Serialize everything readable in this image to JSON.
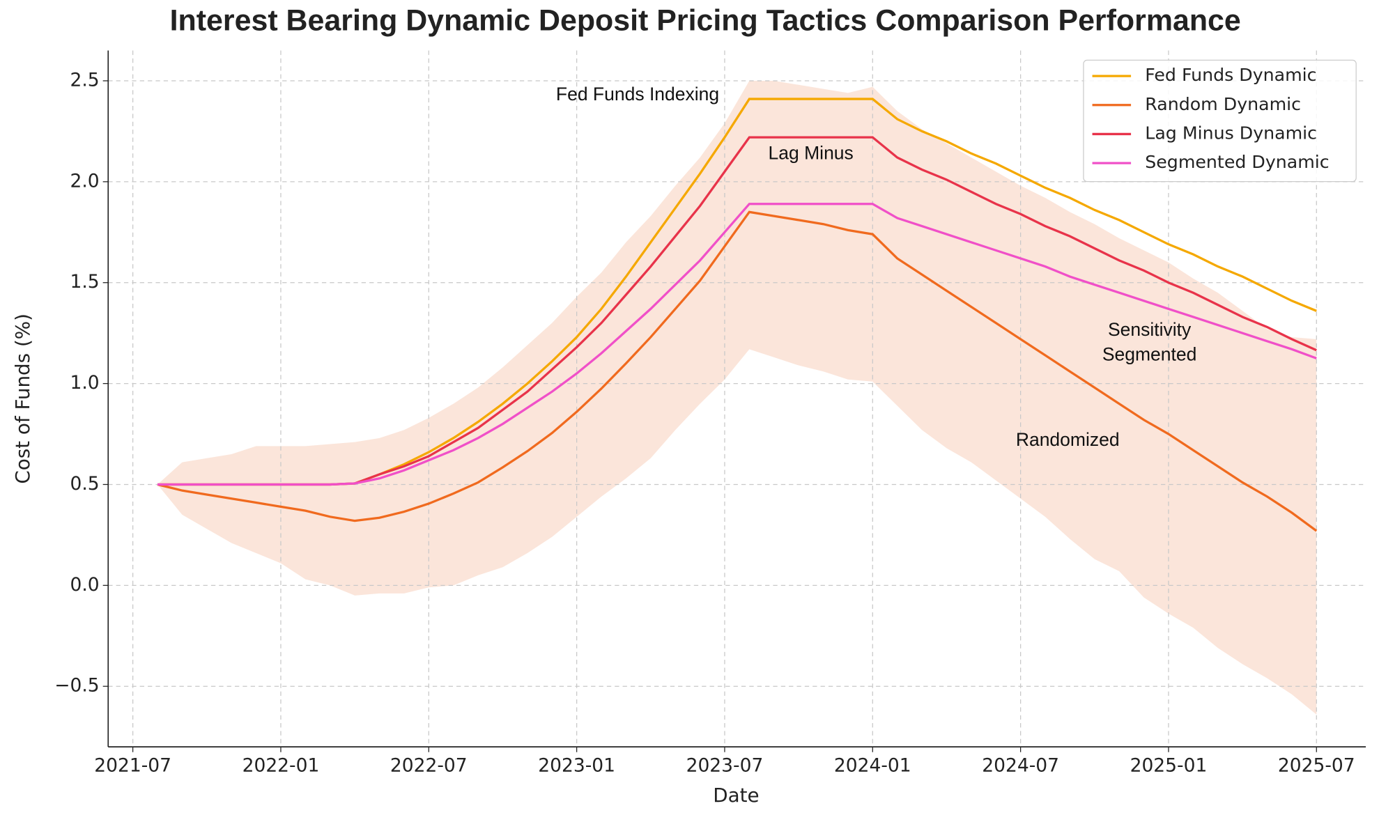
{
  "chart_data": {
    "type": "line",
    "title": "Interest Bearing Dynamic Deposit Pricing Tactics Comparison Performance",
    "xlabel": "Date",
    "ylabel": "Cost of Funds (%)",
    "x": [
      "2021-08",
      "2021-09",
      "2021-10",
      "2021-11",
      "2021-12",
      "2022-01",
      "2022-02",
      "2022-03",
      "2022-04",
      "2022-05",
      "2022-06",
      "2022-07",
      "2022-08",
      "2022-09",
      "2022-10",
      "2022-11",
      "2022-12",
      "2023-01",
      "2023-02",
      "2023-03",
      "2023-04",
      "2023-05",
      "2023-06",
      "2023-07",
      "2023-08",
      "2023-09",
      "2023-10",
      "2023-11",
      "2023-12",
      "2024-01",
      "2024-02",
      "2024-03",
      "2024-04",
      "2024-05",
      "2024-06",
      "2024-07",
      "2024-08",
      "2024-09",
      "2024-10",
      "2024-11",
      "2024-12",
      "2025-01",
      "2025-02",
      "2025-03",
      "2025-04",
      "2025-05",
      "2025-06",
      "2025-07"
    ],
    "series": [
      {
        "name": "Fed Funds Dynamic",
        "color": "#f5a800",
        "values": [
          0.5,
          0.5,
          0.5,
          0.5,
          0.5,
          0.5,
          0.5,
          0.5,
          0.505,
          0.55,
          0.6,
          0.66,
          0.73,
          0.81,
          0.9,
          1.0,
          1.11,
          1.23,
          1.37,
          1.53,
          1.7,
          1.87,
          2.04,
          2.22,
          2.41,
          2.41,
          2.41,
          2.41,
          2.41,
          2.41,
          2.31,
          2.25,
          2.2,
          2.14,
          2.09,
          2.03,
          1.97,
          1.92,
          1.86,
          1.81,
          1.75,
          1.69,
          1.64,
          1.58,
          1.53,
          1.47,
          1.41,
          1.36
        ]
      },
      {
        "name": "Random Dynamic",
        "color": "#f06a1e",
        "values": [
          0.5,
          0.47,
          0.45,
          0.43,
          0.41,
          0.39,
          0.37,
          0.34,
          0.32,
          0.335,
          0.365,
          0.405,
          0.455,
          0.51,
          0.585,
          0.665,
          0.755,
          0.86,
          0.975,
          1.1,
          1.23,
          1.37,
          1.51,
          1.68,
          1.85,
          1.83,
          1.81,
          1.79,
          1.76,
          1.74,
          1.62,
          1.54,
          1.46,
          1.38,
          1.3,
          1.22,
          1.14,
          1.06,
          0.98,
          0.9,
          0.82,
          0.75,
          0.67,
          0.59,
          0.51,
          0.44,
          0.36,
          0.27
        ]
      },
      {
        "name": "Lag Minus Dynamic",
        "color": "#e8334a",
        "values": [
          0.5,
          0.5,
          0.5,
          0.5,
          0.5,
          0.5,
          0.5,
          0.5,
          0.505,
          0.55,
          0.59,
          0.64,
          0.71,
          0.78,
          0.87,
          0.96,
          1.07,
          1.18,
          1.3,
          1.44,
          1.58,
          1.73,
          1.88,
          2.05,
          2.22,
          2.22,
          2.22,
          2.22,
          2.22,
          2.22,
          2.12,
          2.06,
          2.01,
          1.95,
          1.89,
          1.84,
          1.78,
          1.73,
          1.67,
          1.61,
          1.56,
          1.5,
          1.45,
          1.39,
          1.33,
          1.28,
          1.22,
          1.165
        ]
      },
      {
        "name": "Segmented Dynamic",
        "color": "#f050c8",
        "values": [
          0.5,
          0.5,
          0.5,
          0.5,
          0.5,
          0.5,
          0.5,
          0.5,
          0.505,
          0.53,
          0.57,
          0.62,
          0.67,
          0.73,
          0.8,
          0.88,
          0.96,
          1.05,
          1.15,
          1.26,
          1.37,
          1.49,
          1.61,
          1.75,
          1.89,
          1.89,
          1.89,
          1.89,
          1.89,
          1.89,
          1.82,
          1.78,
          1.74,
          1.7,
          1.66,
          1.62,
          1.58,
          1.53,
          1.49,
          1.45,
          1.41,
          1.37,
          1.33,
          1.29,
          1.25,
          1.21,
          1.17,
          1.125
        ]
      }
    ],
    "band": {
      "color": "#fbe5da",
      "upper": [
        0.5,
        0.61,
        0.63,
        0.65,
        0.69,
        0.69,
        0.69,
        0.7,
        0.71,
        0.73,
        0.77,
        0.83,
        0.9,
        0.98,
        1.08,
        1.19,
        1.3,
        1.43,
        1.55,
        1.7,
        1.83,
        1.98,
        2.12,
        2.29,
        2.5,
        2.5,
        2.48,
        2.46,
        2.44,
        2.47,
        2.35,
        2.26,
        2.19,
        2.12,
        2.05,
        1.98,
        1.92,
        1.85,
        1.79,
        1.72,
        1.66,
        1.6,
        1.52,
        1.45,
        1.36,
        1.27,
        1.23,
        1.22
      ],
      "lower": [
        0.5,
        0.35,
        0.28,
        0.21,
        0.16,
        0.11,
        0.03,
        0.0,
        -0.05,
        -0.04,
        -0.04,
        -0.01,
        0.0,
        0.05,
        0.09,
        0.16,
        0.24,
        0.34,
        0.44,
        0.53,
        0.63,
        0.77,
        0.9,
        1.02,
        1.17,
        1.13,
        1.09,
        1.06,
        1.02,
        1.01,
        0.89,
        0.77,
        0.68,
        0.61,
        0.52,
        0.43,
        0.34,
        0.23,
        0.13,
        0.07,
        -0.06,
        -0.14,
        -0.21,
        -0.31,
        -0.39,
        -0.46,
        -0.54,
        -0.64
      ]
    },
    "annotations": [
      "Fed Funds Indexing",
      "Lag Minus",
      "Sensitivity",
      "Segmented",
      "Randomized"
    ],
    "xlim": [
      "2021-06",
      "2025-09"
    ],
    "xticks": [
      "2021-07",
      "2022-01",
      "2022-07",
      "2023-01",
      "2023-07",
      "2024-01",
      "2024-07",
      "2025-01",
      "2025-07"
    ],
    "ylim": [
      -0.8,
      2.65
    ],
    "yticks": [
      {
        "value": -0.5,
        "label": "−0.5"
      },
      {
        "value": 0,
        "label": "0.0"
      },
      0.5,
      {
        "value": 1,
        "label": "1.0"
      },
      1.5,
      {
        "value": 2,
        "label": "2.0"
      },
      2.5
    ],
    "grid": true,
    "legend": "upper right"
  }
}
